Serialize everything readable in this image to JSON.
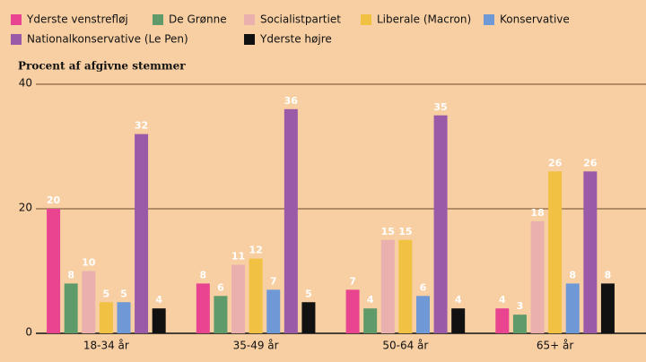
{
  "chart_data": {
    "type": "bar",
    "subtitle": "Procent af afgivne stemmer",
    "categories": [
      "18-34 år",
      "35-49 år",
      "50-64 år",
      "65+ år"
    ],
    "series": [
      {
        "name": "Yderste venstrefløj",
        "color": "#e8448f",
        "values": [
          20,
          8,
          7,
          4
        ]
      },
      {
        "name": "De Grønne",
        "color": "#5f9a6a",
        "values": [
          8,
          6,
          4,
          3
        ]
      },
      {
        "name": "Socialistpartiet",
        "color": "#e9b0ae",
        "values": [
          10,
          11,
          15,
          18
        ]
      },
      {
        "name": "Liberale (Macron)",
        "color": "#f0c142",
        "values": [
          5,
          12,
          15,
          26
        ]
      },
      {
        "name": "Konservative",
        "color": "#6e98d6",
        "values": [
          5,
          7,
          6,
          8
        ]
      },
      {
        "name": "Nationalkonservative (Le Pen)",
        "color": "#9a5aa8",
        "values": [
          32,
          36,
          35,
          26
        ]
      },
      {
        "name": "Yderste højre",
        "color": "#111111",
        "values": [
          4,
          5,
          4,
          8
        ]
      }
    ],
    "ylim": [
      0,
      40
    ],
    "yticks": [
      0,
      20,
      40
    ],
    "grid": true
  }
}
